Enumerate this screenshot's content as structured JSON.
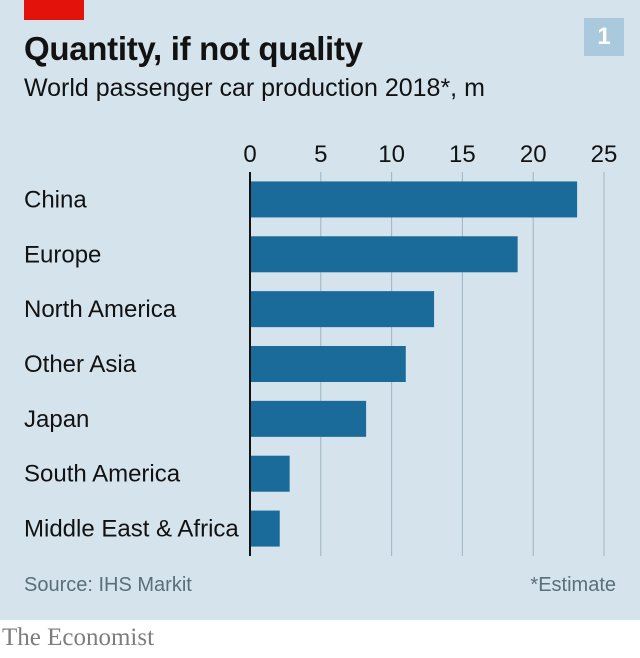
{
  "badge": "1",
  "footer": {
    "source": "Source: IHS Markit",
    "note": "*Estimate"
  },
  "brand": "The Economist",
  "colors": {
    "bar": "#1a6a9a",
    "background": "#d4e3ec",
    "accent": "#e3120b",
    "grid": "#9fb4c1"
  },
  "chart_data": {
    "type": "bar",
    "orientation": "horizontal",
    "title": "Quantity, if not quality",
    "subtitle": "World passenger car production 2018*, m",
    "categories": [
      "China",
      "Europe",
      "North America",
      "Other Asia",
      "Japan",
      "South America",
      "Middle East & Africa"
    ],
    "values": [
      23.1,
      18.9,
      13.0,
      11.0,
      8.2,
      2.8,
      2.1
    ],
    "xlim": [
      0,
      25
    ],
    "xticks": [
      "0",
      "5",
      "10",
      "15",
      "20",
      "25"
    ],
    "xlabel": "",
    "ylabel": "",
    "grid": true,
    "axis_position": "top"
  }
}
